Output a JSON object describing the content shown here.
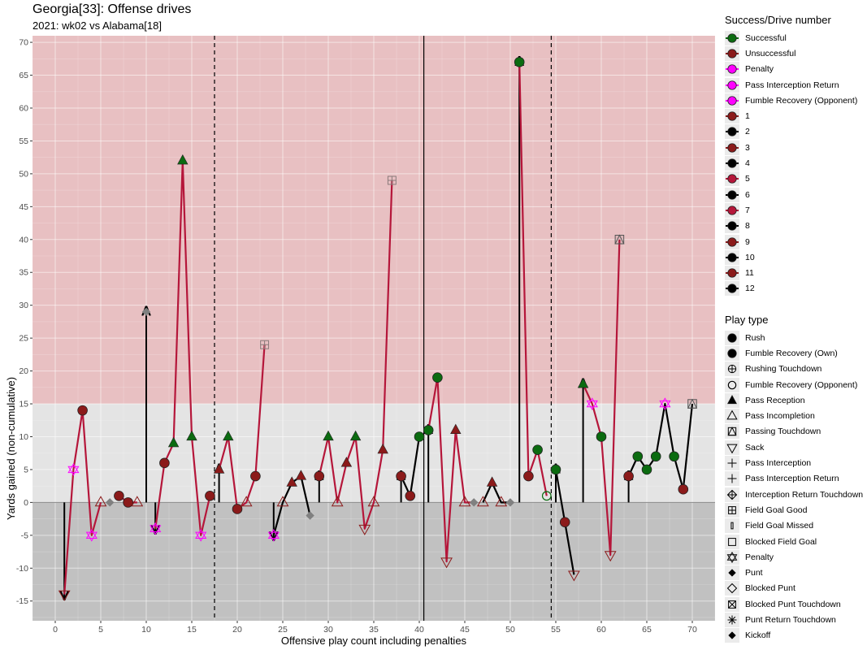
{
  "chart_data": {
    "type": "line",
    "title": "Georgia[33]: Offense drives",
    "subtitle": "2021: wk02 vs Alabama[18]",
    "xlabel": "Offensive play count including penalties",
    "ylabel": "Yards gained (non-cumulative)",
    "xlim": [
      -2.5,
      72.5
    ],
    "ylim": [
      -18,
      71
    ],
    "x_ticks": [
      0,
      5,
      10,
      15,
      20,
      25,
      30,
      35,
      40,
      45,
      50,
      55,
      60,
      65,
      70
    ],
    "y_ticks": [
      -15,
      -10,
      -5,
      0,
      5,
      10,
      15,
      20,
      25,
      30,
      35,
      40,
      45,
      50,
      55,
      60,
      65,
      70
    ],
    "bands": [
      {
        "from": 15,
        "to": 71,
        "color": "#e8c0c2"
      },
      {
        "from": 0,
        "to": 15,
        "color": "#e4e4e4"
      },
      {
        "from": -18,
        "to": 0,
        "color": "#c1c1c1"
      }
    ],
    "vlines": [
      {
        "x": 17.5,
        "style": "dashed"
      },
      {
        "x": 40.5,
        "style": "solid"
      },
      {
        "x": 54.5,
        "style": "dashed"
      }
    ],
    "drive_colors": {
      "odd": "#b5163a",
      "even": "#000000"
    },
    "success_colors": {
      "Successful": "#0b6b10",
      "Unsuccessful": "#8b1a1a",
      "Penalty": "#ff00ff",
      "Neutral": "#808080"
    },
    "drives": [
      {
        "drive": 1,
        "plays": [
          {
            "x": 1,
            "y": -14,
            "t": "sack",
            "s": "Unsuccessful"
          },
          {
            "x": 2,
            "y": 5,
            "t": "penalty",
            "s": "Penalty"
          },
          {
            "x": 3,
            "y": 14,
            "t": "rush",
            "s": "Unsuccessful"
          },
          {
            "x": 4,
            "y": -5,
            "t": "penalty",
            "s": "Penalty"
          },
          {
            "x": 5,
            "y": 0,
            "t": "pass_incomplete",
            "s": "Unsuccessful"
          }
        ]
      },
      {
        "drive": 2,
        "plays": [
          {
            "x": 6,
            "y": 0,
            "t": "punt",
            "s": "Neutral"
          }
        ]
      },
      {
        "drive": 3,
        "plays": [
          {
            "x": 7,
            "y": 1,
            "t": "rush",
            "s": "Unsuccessful"
          },
          {
            "x": 8,
            "y": 0,
            "t": "rush",
            "s": "Unsuccessful"
          },
          {
            "x": 9,
            "y": 0,
            "t": "pass_incomplete",
            "s": "Unsuccessful"
          }
        ]
      },
      {
        "drive": 4,
        "plays": [
          {
            "x": 10,
            "y": 29,
            "t": "punt",
            "s": "Neutral"
          }
        ]
      },
      {
        "drive": 5,
        "plays": [
          {
            "x": 11,
            "y": -4,
            "t": "penalty",
            "s": "Penalty"
          },
          {
            "x": 12,
            "y": 6,
            "t": "rush",
            "s": "Unsuccessful"
          },
          {
            "x": 13,
            "y": 9,
            "t": "pass_reception",
            "s": "Successful"
          },
          {
            "x": 14,
            "y": 52,
            "t": "pass_reception",
            "s": "Successful"
          },
          {
            "x": 15,
            "y": 10,
            "t": "pass_reception",
            "s": "Successful"
          },
          {
            "x": 16,
            "y": -5,
            "t": "penalty",
            "s": "Penalty"
          },
          {
            "x": 17,
            "y": 1,
            "t": "rush",
            "s": "Unsuccessful"
          }
        ]
      },
      {
        "drive": 7,
        "plays": [
          {
            "x": 18,
            "y": 5,
            "t": "pass_reception",
            "s": "Unsuccessful"
          },
          {
            "x": 19,
            "y": 10,
            "t": "pass_reception",
            "s": "Successful"
          },
          {
            "x": 20,
            "y": -1,
            "t": "rush",
            "s": "Unsuccessful"
          },
          {
            "x": 21,
            "y": 0,
            "t": "pass_incomplete",
            "s": "Unsuccessful"
          },
          {
            "x": 22,
            "y": 4,
            "t": "rush",
            "s": "Unsuccessful"
          },
          {
            "x": 23,
            "y": 24,
            "t": "fg_good",
            "s": "Neutral"
          }
        ]
      },
      {
        "drive": 8,
        "plays": [
          {
            "x": 24,
            "y": -5,
            "t": "penalty",
            "s": "Penalty"
          },
          {
            "x": 25,
            "y": 0,
            "t": "pass_incomplete",
            "s": "Unsuccessful"
          },
          {
            "x": 26,
            "y": 3,
            "t": "pass_reception",
            "s": "Unsuccessful"
          },
          {
            "x": 27,
            "y": 4,
            "t": "pass_reception",
            "s": "Unsuccessful"
          },
          {
            "x": 28,
            "y": -2,
            "t": "punt",
            "s": "Neutral"
          }
        ]
      },
      {
        "drive": 9,
        "plays": [
          {
            "x": 29,
            "y": 4,
            "t": "rush",
            "s": "Unsuccessful"
          },
          {
            "x": 30,
            "y": 10,
            "t": "pass_reception",
            "s": "Successful"
          },
          {
            "x": 31,
            "y": 0,
            "t": "pass_incomplete",
            "s": "Unsuccessful"
          },
          {
            "x": 32,
            "y": 6,
            "t": "pass_reception",
            "s": "Unsuccessful"
          },
          {
            "x": 33,
            "y": 10,
            "t": "pass_reception",
            "s": "Successful"
          },
          {
            "x": 34,
            "y": -4,
            "t": "sack",
            "s": "Unsuccessful"
          },
          {
            "x": 35,
            "y": 0,
            "t": "pass_incomplete",
            "s": "Unsuccessful"
          },
          {
            "x": 36,
            "y": 8,
            "t": "pass_reception",
            "s": "Unsuccessful"
          },
          {
            "x": 37,
            "y": 49,
            "t": "fg_good",
            "s": "Neutral"
          }
        ]
      },
      {
        "drive": 10,
        "plays": [
          {
            "x": 38,
            "y": 4,
            "t": "rush",
            "s": "Unsuccessful"
          },
          {
            "x": 39,
            "y": 1,
            "t": "rush",
            "s": "Unsuccessful"
          },
          {
            "x": 40,
            "y": 10,
            "t": "rush",
            "s": "Successful"
          }
        ]
      },
      {
        "drive": 11,
        "plays": [
          {
            "x": 41,
            "y": 11,
            "t": "rush",
            "s": "Successful"
          },
          {
            "x": 42,
            "y": 19,
            "t": "rush",
            "s": "Successful"
          },
          {
            "x": 43,
            "y": -9,
            "t": "sack",
            "s": "Unsuccessful"
          },
          {
            "x": 44,
            "y": 11,
            "t": "pass_reception",
            "s": "Unsuccessful"
          },
          {
            "x": 45,
            "y": 0,
            "t": "pass_incomplete",
            "s": "Unsuccessful"
          },
          {
            "x": 46,
            "y": 0,
            "t": "punt",
            "s": "Neutral"
          }
        ]
      },
      {
        "drive": 12,
        "plays": [
          {
            "x": 47,
            "y": 0,
            "t": "pass_incomplete",
            "s": "Unsuccessful"
          },
          {
            "x": 48,
            "y": 3,
            "t": "pass_reception",
            "s": "Unsuccessful"
          },
          {
            "x": 49,
            "y": 0,
            "t": "pass_incomplete",
            "s": "Unsuccessful"
          },
          {
            "x": 50,
            "y": 0,
            "t": "punt",
            "s": "Neutral"
          }
        ]
      },
      {
        "drive": 13,
        "plays": [
          {
            "x": 51,
            "y": 67,
            "t": "rush",
            "s": "Successful"
          },
          {
            "x": 52,
            "y": 4,
            "t": "rush",
            "s": "Unsuccessful"
          },
          {
            "x": 53,
            "y": 8,
            "t": "rush",
            "s": "Successful"
          },
          {
            "x": 54,
            "y": 1,
            "t": "fumble_opp",
            "s": "Successful"
          }
        ]
      },
      {
        "drive": 14,
        "plays": [
          {
            "x": 55,
            "y": 5,
            "t": "rush",
            "s": "Successful"
          },
          {
            "x": 56,
            "y": -3,
            "t": "rush",
            "s": "Unsuccessful"
          },
          {
            "x": 57,
            "y": -11,
            "t": "sack",
            "s": "Unsuccessful"
          }
        ]
      },
      {
        "drive": 15,
        "plays": [
          {
            "x": 58,
            "y": 18,
            "t": "pass_reception",
            "s": "Successful"
          },
          {
            "x": 59,
            "y": 15,
            "t": "penalty",
            "s": "Penalty"
          },
          {
            "x": 60,
            "y": 10,
            "t": "rush",
            "s": "Successful"
          },
          {
            "x": 61,
            "y": -8,
            "t": "sack",
            "s": "Unsuccessful"
          },
          {
            "x": 62,
            "y": 40,
            "t": "pass_td",
            "s": "Successful"
          }
        ]
      },
      {
        "drive": 16,
        "plays": [
          {
            "x": 63,
            "y": 4,
            "t": "rush",
            "s": "Unsuccessful"
          },
          {
            "x": 64,
            "y": 7,
            "t": "rush",
            "s": "Successful"
          },
          {
            "x": 65,
            "y": 5,
            "t": "rush",
            "s": "Successful"
          },
          {
            "x": 66,
            "y": 7,
            "t": "rush",
            "s": "Successful"
          },
          {
            "x": 67,
            "y": 15,
            "t": "penalty",
            "s": "Penalty"
          },
          {
            "x": 68,
            "y": 7,
            "t": "rush",
            "s": "Successful"
          },
          {
            "x": 69,
            "y": 2,
            "t": "rush",
            "s": "Unsuccessful"
          },
          {
            "x": 70,
            "y": 15,
            "t": "pass_td",
            "s": "Successful"
          }
        ]
      }
    ]
  },
  "legend_success": {
    "title": "Success/Drive number",
    "items": [
      {
        "label": "Successful",
        "color": "#0b6b10"
      },
      {
        "label": "Unsuccessful",
        "color": "#8b1a1a"
      },
      {
        "label": "Penalty",
        "color": "#ff00ff"
      },
      {
        "label": "Pass Interception Return",
        "color": "#ff00ff"
      },
      {
        "label": "Fumble Recovery (Opponent)",
        "color": "#ff00ff"
      },
      {
        "label": "1",
        "color": "#8b1a1a"
      },
      {
        "label": "2",
        "color": "#000000"
      },
      {
        "label": "3",
        "color": "#8b1a1a"
      },
      {
        "label": "4",
        "color": "#000000"
      },
      {
        "label": "5",
        "color": "#b5163a"
      },
      {
        "label": "6",
        "color": "#000000"
      },
      {
        "label": "7",
        "color": "#b5163a"
      },
      {
        "label": "8",
        "color": "#000000"
      },
      {
        "label": "9",
        "color": "#8b1a1a"
      },
      {
        "label": "10",
        "color": "#000000"
      },
      {
        "label": "11",
        "color": "#8b1a1a"
      },
      {
        "label": "12",
        "color": "#000000"
      }
    ]
  },
  "legend_playtype": {
    "title": "Play type",
    "items": [
      {
        "label": "Rush",
        "shape": "circle"
      },
      {
        "label": "Fumble Recovery (Own)",
        "shape": "circle"
      },
      {
        "label": "Rushing Touchdown",
        "shape": "circle-plus"
      },
      {
        "label": "Fumble Recovery (Opponent)",
        "shape": "circle-open"
      },
      {
        "label": "Pass Reception",
        "shape": "triangle"
      },
      {
        "label": "Pass Incompletion",
        "shape": "triangle-open"
      },
      {
        "label": "Passing Touchdown",
        "shape": "triangle-square"
      },
      {
        "label": "Sack",
        "shape": "triangle-down-open"
      },
      {
        "label": "Pass Interception",
        "shape": "plus"
      },
      {
        "label": "Pass Interception Return",
        "shape": "plus"
      },
      {
        "label": "Interception Return Touchdown",
        "shape": "diamond-plus"
      },
      {
        "label": "Field Goal Good",
        "shape": "square-plus"
      },
      {
        "label": "Field Goal Missed",
        "shape": "bar"
      },
      {
        "label": "Blocked Field Goal",
        "shape": "square-open"
      },
      {
        "label": "Penalty",
        "shape": "star-david"
      },
      {
        "label": "Punt",
        "shape": "diamond"
      },
      {
        "label": "Blocked Punt",
        "shape": "diamond-open"
      },
      {
        "label": "Blocked Punt Touchdown",
        "shape": "square-x"
      },
      {
        "label": "Punt Return Touchdown",
        "shape": "asterisk"
      },
      {
        "label": "Kickoff",
        "shape": "diamond"
      }
    ]
  }
}
